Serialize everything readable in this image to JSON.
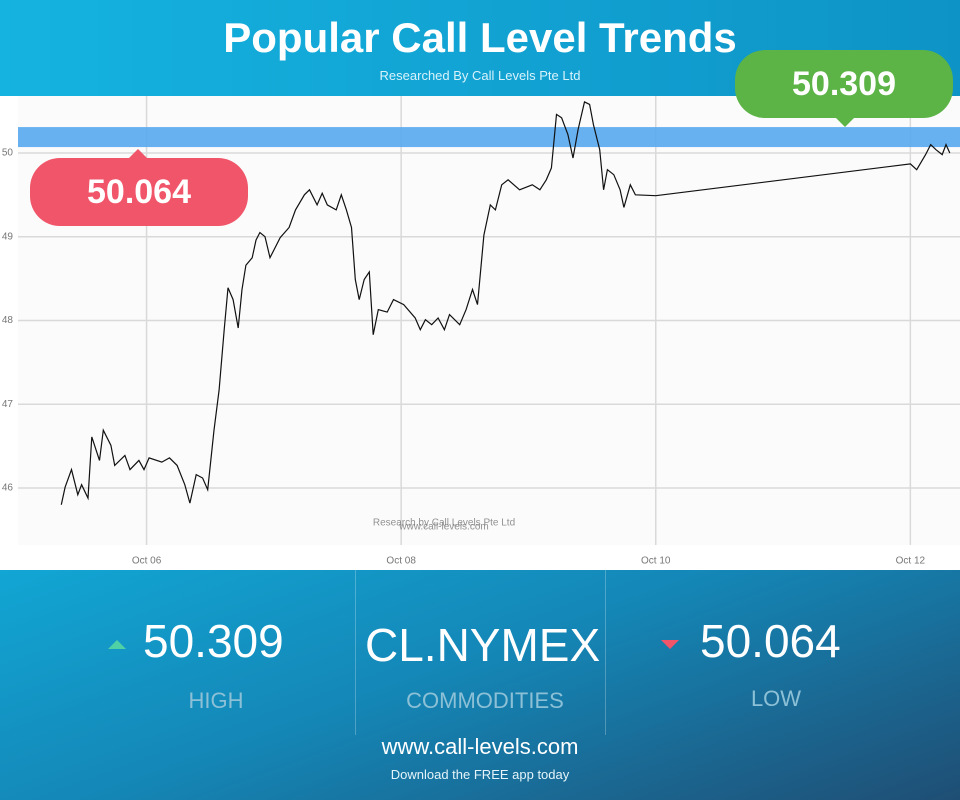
{
  "header": {
    "title": "Popular Call Level Trends",
    "subtitle": "Researched By Call Levels Pte Ltd"
  },
  "levels": {
    "high": 50.309,
    "low": 50.064
  },
  "chart_data": {
    "type": "line",
    "color": "#111111",
    "grid": true,
    "xlim": [
      4.99,
      12.39
    ],
    "ylim": [
      45.32,
      50.68
    ],
    "xticks": [
      {
        "value": 6,
        "label": "Oct 06"
      },
      {
        "value": 8,
        "label": "Oct 08"
      },
      {
        "value": 10,
        "label": "Oct 10"
      },
      {
        "value": 12,
        "label": "Oct 12"
      }
    ],
    "yticks": [
      46,
      47,
      48,
      49,
      50
    ],
    "watermark": [
      "Research by Call Levels Pte Ltd",
      "www.call-levels.com"
    ],
    "x": [
      5.33,
      5.36,
      5.41,
      5.46,
      5.49,
      5.54,
      5.57,
      5.63,
      5.66,
      5.72,
      5.75,
      5.83,
      5.87,
      5.94,
      5.98,
      6.02,
      6.12,
      6.18,
      6.24,
      6.3,
      6.34,
      6.39,
      6.44,
      6.48,
      6.53,
      6.57,
      6.61,
      6.64,
      6.68,
      6.72,
      6.75,
      6.78,
      6.83,
      6.86,
      6.89,
      6.93,
      6.97,
      7.05,
      7.12,
      7.17,
      7.24,
      7.28,
      7.34,
      7.38,
      7.42,
      7.49,
      7.53,
      7.57,
      7.61,
      7.64,
      7.67,
      7.71,
      7.75,
      7.78,
      7.82,
      7.89,
      7.94,
      8.02,
      8.11,
      8.15,
      8.19,
      8.24,
      8.29,
      8.34,
      8.38,
      8.46,
      8.51,
      8.56,
      8.6,
      8.65,
      8.7,
      8.74,
      8.79,
      8.84,
      8.93,
      9.03,
      9.09,
      9.14,
      9.18,
      9.22,
      9.26,
      9.31,
      9.35,
      9.39,
      9.44,
      9.48,
      9.51,
      9.56,
      9.59,
      9.62,
      9.67,
      9.72,
      9.75,
      9.8,
      9.84,
      10.0,
      12.0,
      12.05,
      12.12,
      12.16,
      12.2,
      12.25,
      12.28,
      12.31
    ],
    "values": [
      45.8,
      46.01,
      46.22,
      45.92,
      46.04,
      45.88,
      46.61,
      46.33,
      46.69,
      46.51,
      46.27,
      46.39,
      46.22,
      46.33,
      46.22,
      46.36,
      46.31,
      46.36,
      46.27,
      46.04,
      45.82,
      46.16,
      46.12,
      45.98,
      46.69,
      47.17,
      47.89,
      48.39,
      48.25,
      47.91,
      48.37,
      48.66,
      48.75,
      48.96,
      49.05,
      49.0,
      48.75,
      48.99,
      49.11,
      49.32,
      49.5,
      49.56,
      49.38,
      49.52,
      49.38,
      49.32,
      49.5,
      49.32,
      49.11,
      48.49,
      48.25,
      48.49,
      48.58,
      47.83,
      48.13,
      48.1,
      48.25,
      48.19,
      48.03,
      47.89,
      48.01,
      47.95,
      48.03,
      47.89,
      48.07,
      47.95,
      48.13,
      48.37,
      48.19,
      49.02,
      49.38,
      49.32,
      49.62,
      49.68,
      49.56,
      49.62,
      49.56,
      49.68,
      49.82,
      50.46,
      50.42,
      50.22,
      49.94,
      50.28,
      50.61,
      50.58,
      50.34,
      50.04,
      49.56,
      49.8,
      49.74,
      49.56,
      49.35,
      49.62,
      49.5,
      49.49,
      49.87,
      49.8,
      49.98,
      50.1,
      50.04,
      49.98,
      50.1,
      50.0
    ]
  },
  "summary": {
    "high_label": "HIGH",
    "symbol": "CL.NYMEX",
    "category": "COMMODITIES",
    "low_label": "LOW"
  },
  "footer": {
    "url": "www.call-levels.com",
    "tagline": "Download the FREE app today"
  }
}
